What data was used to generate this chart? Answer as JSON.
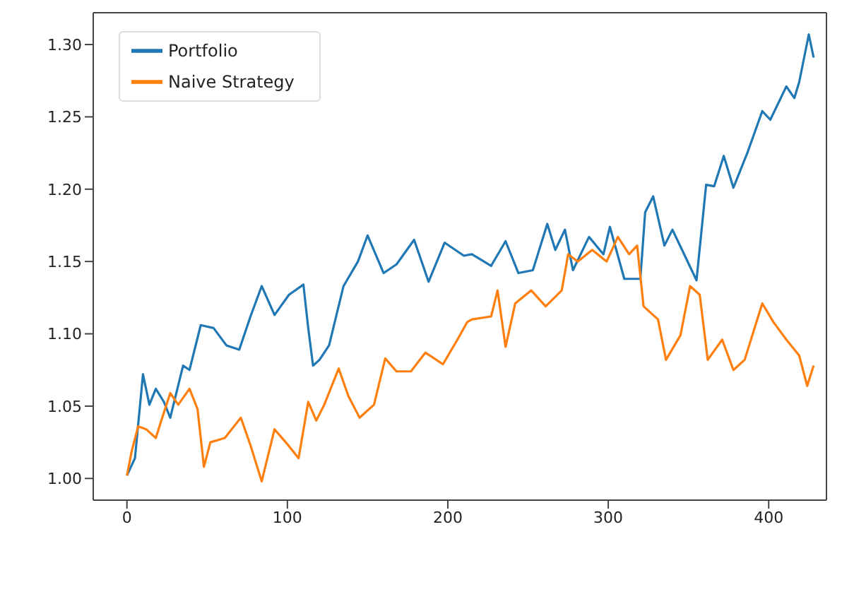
{
  "chart_data": {
    "type": "line",
    "legend": "top left",
    "grid": false,
    "xlim": [
      -21,
      436
    ],
    "ylim": [
      0.985,
      1.322
    ],
    "xticks": [
      0,
      100,
      200,
      300,
      400
    ],
    "yticks": [
      {
        "value": 1.0,
        "label": "1.00"
      },
      {
        "value": 1.05,
        "label": "1.05"
      },
      {
        "value": 1.1,
        "label": "1.10"
      },
      {
        "value": 1.15,
        "label": "1.15"
      },
      {
        "value": 1.2,
        "label": "1.20"
      },
      {
        "value": 1.25,
        "label": "1.25"
      },
      {
        "value": 1.3,
        "label": "1.30"
      }
    ],
    "series": [
      {
        "name": "Portfolio",
        "color": "#1f77b4",
        "x": [
          0,
          5,
          10,
          14,
          18,
          23,
          27,
          35,
          39,
          46,
          54,
          62,
          70,
          77,
          84,
          92,
          101,
          110,
          113,
          116,
          120,
          126,
          135,
          144,
          150,
          160,
          168,
          179,
          188,
          198,
          210,
          215,
          227,
          236,
          244,
          253,
          262,
          267,
          273,
          278,
          288,
          297,
          301,
          310,
          320,
          323,
          328,
          335,
          340,
          346,
          355,
          361,
          366,
          372,
          378,
          387,
          396,
          401,
          411,
          416,
          419,
          425,
          428
        ],
        "values": [
          1.002,
          1.014,
          1.072,
          1.051,
          1.062,
          1.053,
          1.042,
          1.078,
          1.075,
          1.106,
          1.104,
          1.092,
          1.089,
          1.112,
          1.133,
          1.113,
          1.127,
          1.134,
          1.104,
          1.078,
          1.082,
          1.092,
          1.133,
          1.15,
          1.168,
          1.142,
          1.148,
          1.165,
          1.136,
          1.163,
          1.154,
          1.155,
          1.147,
          1.164,
          1.142,
          1.144,
          1.176,
          1.158,
          1.172,
          1.144,
          1.167,
          1.155,
          1.174,
          1.138,
          1.138,
          1.184,
          1.195,
          1.161,
          1.172,
          1.158,
          1.137,
          1.203,
          1.202,
          1.223,
          1.201,
          1.226,
          1.254,
          1.248,
          1.271,
          1.263,
          1.274,
          1.307,
          1.291
        ]
      },
      {
        "name": "Naive Strategy",
        "color": "#ff7f0e",
        "x": [
          0,
          3,
          7,
          12,
          18,
          22,
          27,
          32,
          39,
          44,
          48,
          52,
          61,
          71,
          77,
          84,
          92,
          99,
          107,
          113,
          118,
          123,
          132,
          138,
          145,
          154,
          161,
          168,
          177,
          186,
          197,
          206,
          212,
          215,
          227,
          231,
          236,
          242,
          252,
          261,
          271,
          275,
          281,
          290,
          299,
          306,
          313,
          318,
          322,
          331,
          336,
          345,
          351,
          357,
          362,
          371,
          378,
          385,
          396,
          403,
          411,
          419,
          424,
          428
        ],
        "values": [
          1.002,
          1.019,
          1.036,
          1.034,
          1.028,
          1.042,
          1.059,
          1.051,
          1.062,
          1.048,
          1.008,
          1.025,
          1.028,
          1.042,
          1.023,
          0.998,
          1.034,
          1.025,
          1.014,
          1.053,
          1.04,
          1.051,
          1.076,
          1.057,
          1.042,
          1.051,
          1.083,
          1.074,
          1.074,
          1.087,
          1.079,
          1.096,
          1.108,
          1.11,
          1.112,
          1.13,
          1.091,
          1.121,
          1.13,
          1.119,
          1.13,
          1.155,
          1.15,
          1.158,
          1.15,
          1.167,
          1.155,
          1.161,
          1.119,
          1.11,
          1.082,
          1.099,
          1.133,
          1.127,
          1.082,
          1.096,
          1.075,
          1.082,
          1.121,
          1.108,
          1.096,
          1.085,
          1.064,
          1.078
        ]
      }
    ]
  }
}
